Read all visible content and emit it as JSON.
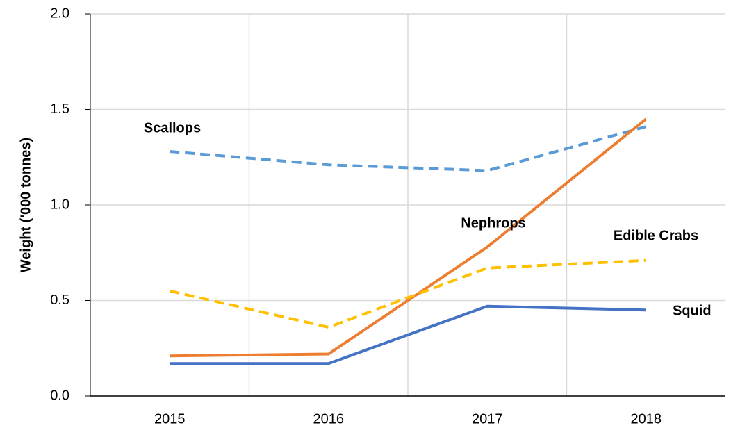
{
  "chart_data": {
    "type": "line",
    "y_label": "Weight ('000 tonnes)",
    "categories": [
      "2015",
      "2016",
      "2017",
      "2018"
    ],
    "series": [
      {
        "name": "Scallops",
        "color": "#5b9bd5",
        "dashed": true,
        "values": [
          1.28,
          1.21,
          1.18,
          1.41
        ]
      },
      {
        "name": "Nephrops",
        "color": "#ed7d31",
        "dashed": false,
        "values": [
          0.21,
          0.22,
          0.78,
          1.45
        ]
      },
      {
        "name": "Edible Crabs",
        "color": "#ffc000",
        "dashed": true,
        "values": [
          0.55,
          0.36,
          0.67,
          0.71
        ]
      },
      {
        "name": "Squid",
        "color": "#4472c4",
        "dashed": false,
        "values": [
          0.17,
          0.17,
          0.47,
          0.45
        ]
      }
    ],
    "ylim": [
      0,
      2
    ],
    "yticks": [
      {
        "value": 0,
        "label": "0.0"
      },
      {
        "value": 0.5,
        "label": "0.5"
      },
      {
        "value": 1,
        "label": "1.0"
      },
      {
        "value": 1.5,
        "label": "1.5"
      },
      {
        "value": 2,
        "label": "2.0"
      }
    ],
    "grid": true
  }
}
